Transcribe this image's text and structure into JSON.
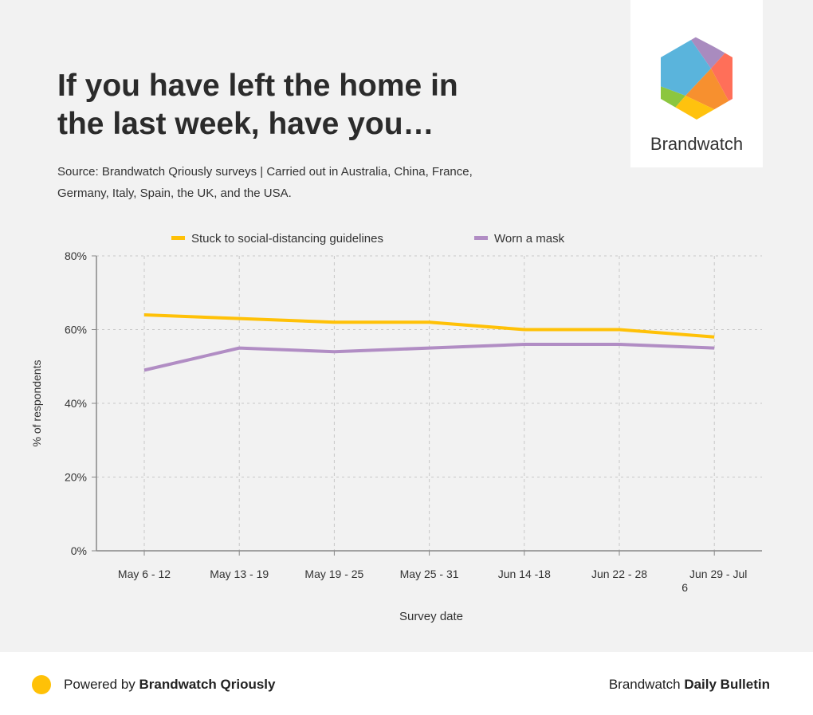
{
  "title": "If you have left the home in the last week, have you…",
  "source": "Source: Brandwatch Qriously surveys | Carried out in Australia, China, France, Germany, Italy, Spain, the UK, and the USA.",
  "logo": {
    "name": "Brandwatch",
    "colors": [
      "#5ab4dc",
      "#a98bbf",
      "#ff6f59",
      "#f7902f",
      "#ffc20e",
      "#8cc63f"
    ]
  },
  "footer": {
    "powered_prefix": "Powered by ",
    "powered_brand": "Brandwatch Qriously",
    "right_prefix": "Brandwatch ",
    "right_bold": "Daily Bulletin"
  },
  "chart_data": {
    "type": "line",
    "categories": [
      "May 6 - 12",
      "May 13 - 19",
      "May 19 - 25",
      "May 25 - 31",
      "Jun 14 -18",
      "Jun 22 - 28",
      "Jun 29 - Jul 6"
    ],
    "series": [
      {
        "name": "Stuck to social-distancing guidelines",
        "color": "#ffc107",
        "values": [
          64,
          63,
          62,
          62,
          60,
          60,
          58
        ]
      },
      {
        "name": "Worn a mask",
        "color": "#b18dc4",
        "values": [
          49,
          55,
          54,
          55,
          56,
          56,
          55
        ]
      }
    ],
    "xlabel": "Survey date",
    "ylabel": "% of respondents",
    "ylim": [
      0,
      80
    ],
    "yticks": [
      "0%",
      "20%",
      "40%",
      "60%",
      "80%"
    ],
    "grid": true,
    "legend": "top"
  }
}
